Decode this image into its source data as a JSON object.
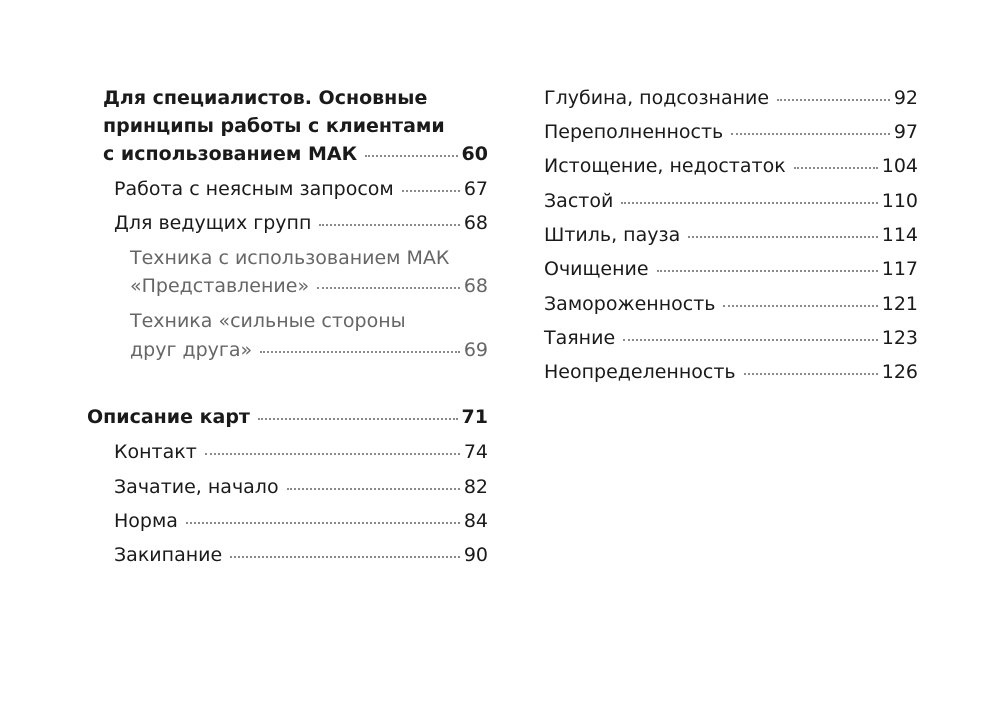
{
  "toc": {
    "left": {
      "specialists": {
        "line1": "Для специалистов. Основные",
        "line2": "принципы работы с клиентами",
        "line3": "с использованием МАК",
        "page": "60"
      },
      "unclear_request": {
        "title": "Работа с неясным запросом",
        "page": "67"
      },
      "group_leaders": {
        "title": "Для ведущих групп",
        "page": "68"
      },
      "technique_presentation": {
        "line1": "Техника с использованием МАК",
        "line2": "«Представление»",
        "page": "68"
      },
      "technique_strengths": {
        "line1": "Техника «сильные стороны",
        "line2": "друг друга»",
        "page": "69"
      },
      "cards_description": {
        "title": "Описание карт",
        "page": "71"
      },
      "items": [
        {
          "title": "Контакт",
          "page": "74"
        },
        {
          "title": "Зачатие, начало",
          "page": "82"
        },
        {
          "title": "Норма",
          "page": "84"
        },
        {
          "title": "Закипание",
          "page": "90"
        }
      ]
    },
    "right": {
      "items": [
        {
          "title": "Глубина, подсознание",
          "page": "92"
        },
        {
          "title": "Переполненность",
          "page": "97"
        },
        {
          "title": "Истощение, недостаток",
          "page": "104"
        },
        {
          "title": "Застой",
          "page": "110"
        },
        {
          "title": "Штиль, пауза",
          "page": "114"
        },
        {
          "title": "Очищение",
          "page": "117"
        },
        {
          "title": "Замороженность",
          "page": "121"
        },
        {
          "title": "Таяние",
          "page": "123"
        },
        {
          "title": "Неопределенность",
          "page": "126"
        }
      ]
    }
  },
  "colors": {
    "text": "#1a1a1a",
    "subsection_text": "#666666",
    "leader_dots": "#8a8a8a"
  }
}
